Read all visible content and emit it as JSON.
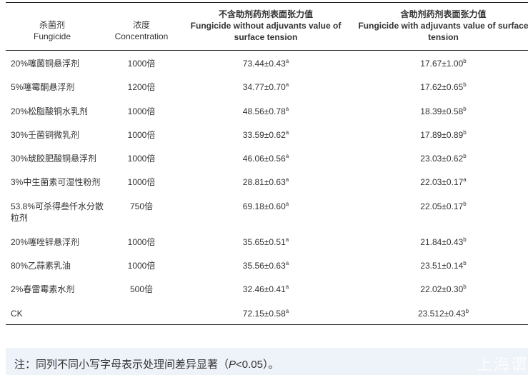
{
  "table": {
    "headers": [
      {
        "cn": "杀菌剂",
        "en": "Fungicide"
      },
      {
        "cn": "浓度",
        "en": "Concentration"
      },
      {
        "cn": "不含助剂药剂表面张力值",
        "en": "Fungicide without adjuvants value of surface tension"
      },
      {
        "cn": "含助剂药剂表面张力值",
        "en": "Fungicide with adjuvants value of surface tension"
      }
    ],
    "rows": [
      {
        "fungicide": "20%噻菌铜悬浮剂",
        "concentration": "1000倍",
        "without": "73.44±0.43",
        "without_sig": "a",
        "with": "17.67±1.00",
        "with_sig": "b"
      },
      {
        "fungicide": "5%噻霉酮悬浮剂",
        "concentration": "1200倍",
        "without": "34.77±0.70",
        "without_sig": "a",
        "with": "17.62±0.65",
        "with_sig": "b"
      },
      {
        "fungicide": "20%松脂酸铜水乳剂",
        "concentration": "1000倍",
        "without": "48.56±0.78",
        "without_sig": "a",
        "with": "18.39±0.58",
        "with_sig": "b"
      },
      {
        "fungicide": "30%壬菌铜微乳剂",
        "concentration": "1000倍",
        "without": "33.59±0.62",
        "without_sig": "a",
        "with": "17.89±0.89",
        "with_sig": "b"
      },
      {
        "fungicide": "30%琥胶肥酸铜悬浮剂",
        "concentration": "1000倍",
        "without": "46.06±0.56",
        "without_sig": "a",
        "with": "23.03±0.62",
        "with_sig": "b"
      },
      {
        "fungicide": "3%中生菌素可湿性粉剂",
        "concentration": "1000倍",
        "without": "28.81±0.63",
        "without_sig": "a",
        "with": "22.03±0.17",
        "with_sig": "a"
      },
      {
        "fungicide": "53.8%可杀得叁仟水分散粒剂",
        "concentration": "750倍",
        "without": "69.18±0.60",
        "without_sig": "a",
        "with": "22.05±0.17",
        "with_sig": "b"
      },
      {
        "fungicide": "20%噻唑锌悬浮剂",
        "concentration": "1000倍",
        "without": "35.65±0.51",
        "without_sig": "a",
        "with": "21.84±0.43",
        "with_sig": "b"
      },
      {
        "fungicide": "80%乙蒜素乳油",
        "concentration": "1000倍",
        "without": "35.56±0.63",
        "without_sig": "a",
        "with": "23.51±0.14",
        "with_sig": "b"
      },
      {
        "fungicide": "2%春雷霉素水剂",
        "concentration": "500倍",
        "without": "32.46±0.41",
        "without_sig": "a",
        "with": "22.02±0.30",
        "with_sig": "b"
      },
      {
        "fungicide": "CK",
        "concentration": "",
        "without": "72.15±0.58",
        "without_sig": "a",
        "with": "23.512±0.43",
        "with_sig": "b"
      }
    ]
  },
  "note": {
    "prefix": "注：同列不同小写字母表示处理间差异显著（",
    "p": "P",
    "suffix": "<0.05）。",
    "watermark": "上海谓"
  }
}
